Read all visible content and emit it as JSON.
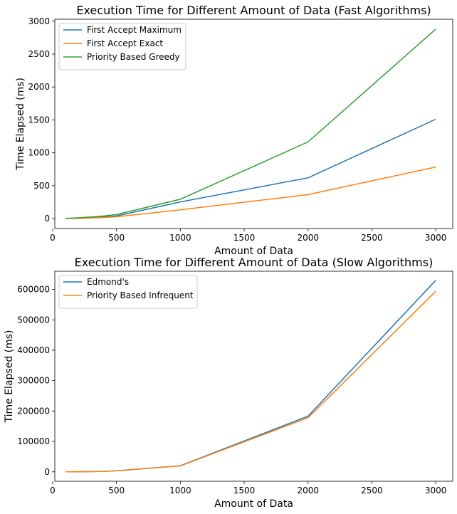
{
  "chart_data": [
    {
      "type": "line",
      "title": "Execution Time for Different Amount of Data (Fast Algorithms)",
      "xlabel": "Amount of Data",
      "ylabel": "Time Elapsed (ms)",
      "xlim": [
        17,
        3133
      ],
      "ylim": [
        -150,
        3030
      ],
      "xticks": [
        0,
        500,
        1000,
        1500,
        2000,
        2500,
        3000
      ],
      "yticks": [
        0,
        500,
        1000,
        1500,
        2000,
        2500,
        3000
      ],
      "xtick_labels": [
        "0",
        "500",
        "1000",
        "1500",
        "2000",
        "2500",
        "3000"
      ],
      "ytick_labels": [
        "0",
        "500",
        "1000",
        "1500",
        "2000",
        "2500",
        "3000"
      ],
      "legend_position": "upper-left",
      "grid": false,
      "x": [
        100,
        200,
        300,
        400,
        500,
        1000,
        2000,
        3000
      ],
      "series": [
        {
          "name": "First Accept Maximum",
          "color": "#1f77b4",
          "values": [
            3,
            8,
            15,
            25,
            40,
            255,
            620,
            1510
          ]
        },
        {
          "name": "First Accept Exact",
          "color": "#ff7f0e",
          "values": [
            2,
            5,
            10,
            18,
            28,
            135,
            365,
            785
          ]
        },
        {
          "name": "Priority Based Greedy",
          "color": "#2ca02c",
          "values": [
            5,
            12,
            25,
            40,
            62,
            295,
            1165,
            2880
          ]
        }
      ]
    },
    {
      "type": "line",
      "title": "Execution Time for Different Amount of Data (Slow Algorithms)",
      "xlabel": "Amount of Data",
      "ylabel": "Time Elapsed (ms)",
      "xlim": [
        17,
        3133
      ],
      "ylim": [
        -31000,
        660000
      ],
      "xticks": [
        0,
        500,
        1000,
        1500,
        2000,
        2500,
        3000
      ],
      "yticks": [
        0,
        100000,
        200000,
        300000,
        400000,
        500000,
        600000
      ],
      "xtick_labels": [
        "0",
        "500",
        "1000",
        "1500",
        "2000",
        "2500",
        "3000"
      ],
      "ytick_labels": [
        "0",
        "100000",
        "200000",
        "300000",
        "400000",
        "500000",
        "600000"
      ],
      "legend_position": "upper-left",
      "grid": false,
      "x": [
        100,
        200,
        300,
        400,
        500,
        1000,
        2000,
        3000
      ],
      "series": [
        {
          "name": "Edmond's",
          "color": "#1f77b4",
          "values": [
            100,
            300,
            700,
            1500,
            3500,
            20000,
            183000,
            630000
          ]
        },
        {
          "name": "Priority Based Infrequent",
          "color": "#ff7f0e",
          "values": [
            100,
            300,
            700,
            1500,
            3200,
            19500,
            178000,
            594000
          ]
        }
      ]
    }
  ]
}
